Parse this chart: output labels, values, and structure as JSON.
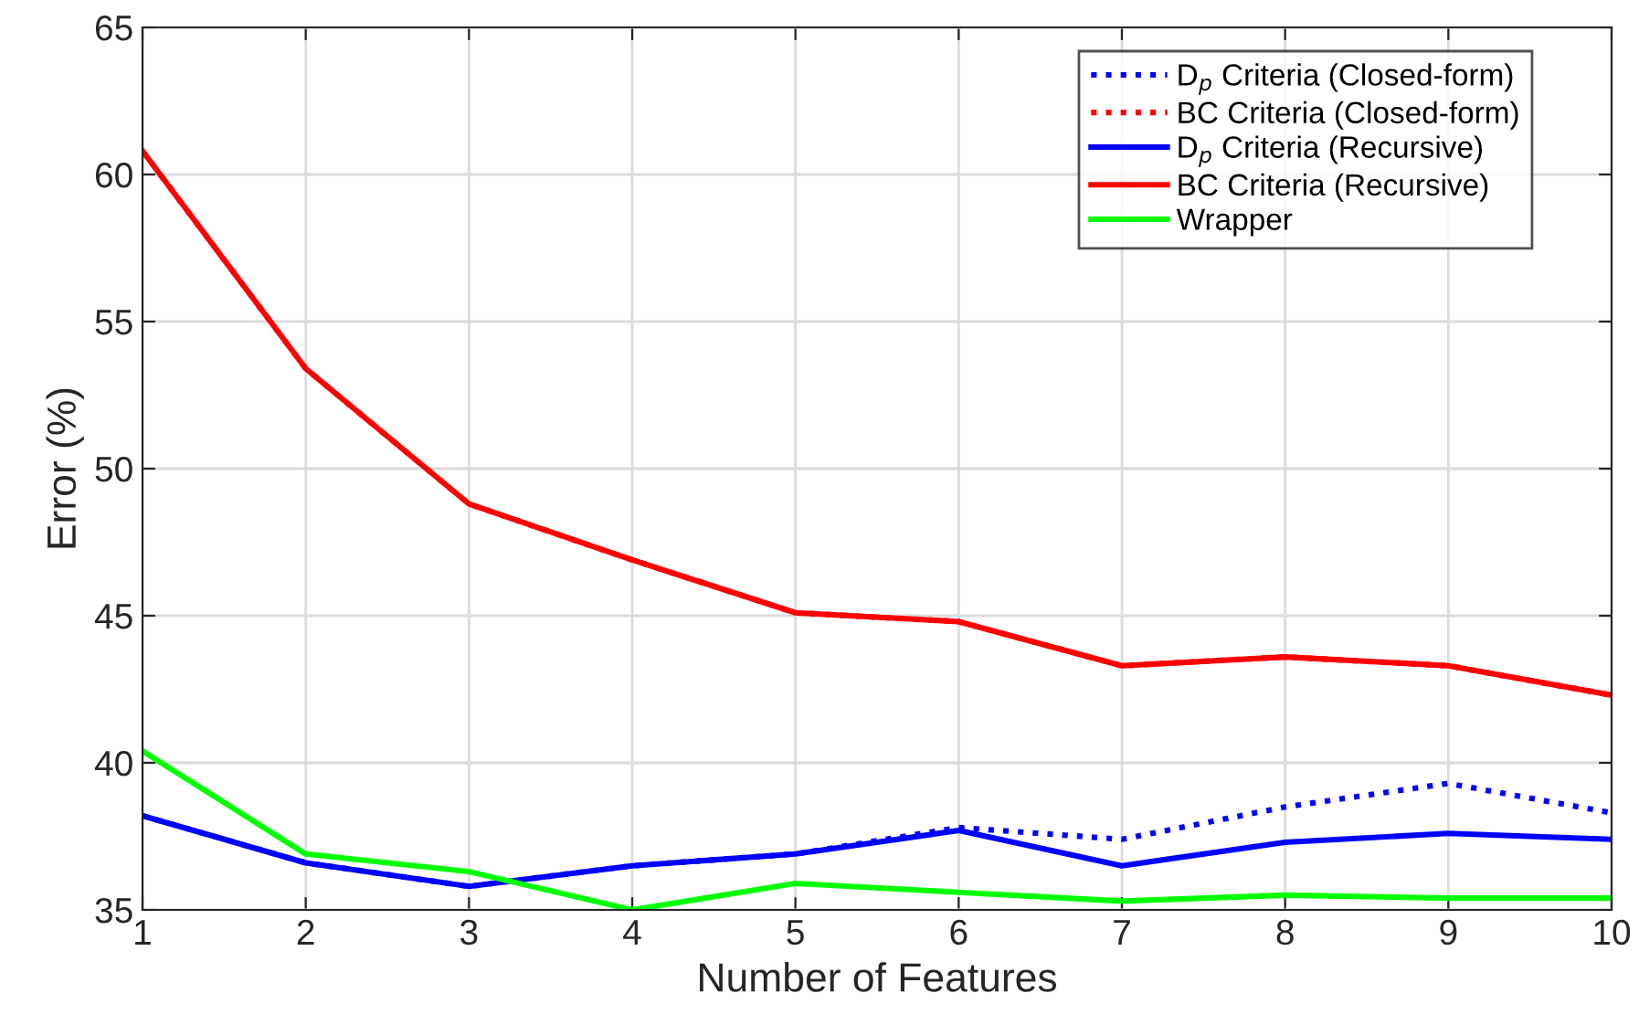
{
  "chart_data": {
    "type": "line",
    "xlabel": "Number of Features",
    "ylabel": "Error (%)",
    "x": [
      1,
      2,
      3,
      4,
      5,
      6,
      7,
      8,
      9,
      10
    ],
    "xlim": [
      1,
      10
    ],
    "xticks": [
      1,
      2,
      3,
      4,
      5,
      6,
      7,
      8,
      9,
      10
    ],
    "ylim": [
      35,
      65
    ],
    "yticks": [
      35,
      40,
      45,
      50,
      55,
      60,
      65
    ],
    "grid": true,
    "legend": "top right",
    "series": [
      {
        "name": "D$_{p}$ Criteria (Closed-form)",
        "color": "#0000ff",
        "line_style": "dotted",
        "values": [
          38.2,
          36.6,
          35.8,
          36.5,
          36.9,
          37.8,
          37.4,
          38.5,
          39.3,
          38.3
        ]
      },
      {
        "name": "BC Criteria (Closed-form)",
        "color": "#ff0000",
        "line_style": "dotted",
        "values": [
          60.8,
          53.4,
          48.8,
          46.9,
          45.1,
          44.8,
          43.3,
          43.6,
          43.3,
          42.3
        ]
      },
      {
        "name": "D$_{p}$ Criteria (Recursive)",
        "color": "#0000ff",
        "line_style": "solid",
        "values": [
          38.2,
          36.6,
          35.8,
          36.5,
          36.9,
          37.7,
          36.5,
          37.3,
          37.6,
          37.4
        ]
      },
      {
        "name": "BC Criteria (Recursive)",
        "color": "#ff0000",
        "line_style": "solid",
        "values": [
          60.8,
          53.4,
          48.8,
          46.9,
          45.1,
          44.8,
          43.3,
          43.6,
          43.3,
          42.3
        ]
      },
      {
        "name": "Wrapper",
        "color": "#00ff00",
        "line_style": "solid",
        "values": [
          40.4,
          36.9,
          36.3,
          35.0,
          35.9,
          35.6,
          35.3,
          35.5,
          35.4,
          35.4
        ]
      }
    ]
  }
}
